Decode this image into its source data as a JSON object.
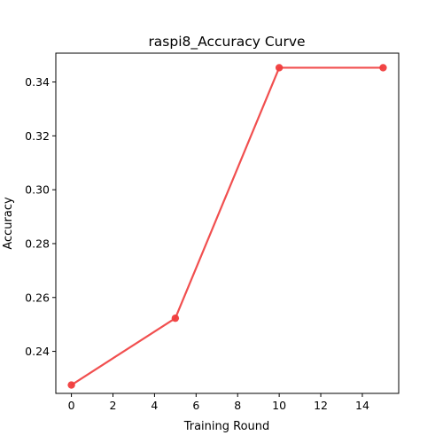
{
  "chart_data": {
    "type": "line",
    "title": "raspi8_Accuracy Curve",
    "xlabel": "Training Round",
    "ylabel": "Accuracy",
    "xlim": [
      -0.75,
      15.75
    ],
    "ylim": [
      0.2244,
      0.3507
    ],
    "xticks": [
      0,
      2,
      4,
      6,
      8,
      10,
      12,
      14
    ],
    "yticks": [
      0.24,
      0.26,
      0.28,
      0.3,
      0.32,
      0.34
    ],
    "x_tick_labels": [
      "0",
      "2",
      "4",
      "6",
      "8",
      "10",
      "12",
      "14"
    ],
    "y_tick_labels": [
      "0.24",
      "0.26",
      "0.28",
      "0.30",
      "0.32",
      "0.34"
    ],
    "grid": false,
    "series": [
      {
        "x": [
          0,
          5,
          10,
          15
        ],
        "values": [
          0.2275,
          0.2523,
          0.3453,
          0.3453
        ],
        "color": "#f03c3c",
        "marker": "circle"
      }
    ]
  }
}
